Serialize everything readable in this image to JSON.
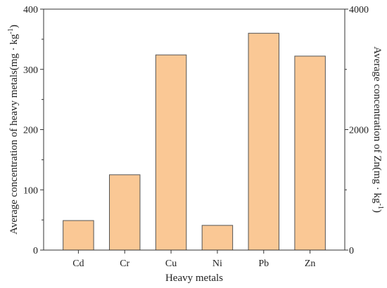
{
  "chart_data": {
    "type": "bar",
    "categories": [
      "Cd",
      "Cr",
      "Cu",
      "Ni",
      "Pb",
      "Zn"
    ],
    "values": [
      49,
      125,
      324,
      41,
      360,
      322
    ],
    "bar_color": "#fac895",
    "bar_edge_color": "#555555",
    "xlabel": "Heavy metals",
    "ylabel_left": "Average concentration of heavy metals(mg · kg",
    "ylabel_left_sup": "-1",
    "ylabel_left_close": ")",
    "ylabel_right": "Average concentration of Zn(mg · kg",
    "ylabel_right_sup": "-1",
    "ylabel_right_close": ")",
    "ylim_left": [
      0,
      400
    ],
    "yticks_left": [
      0,
      100,
      200,
      300,
      400
    ],
    "ylim_right": [
      0,
      4000
    ],
    "yticks_right": [
      0,
      2000,
      4000
    ],
    "grid": false
  }
}
